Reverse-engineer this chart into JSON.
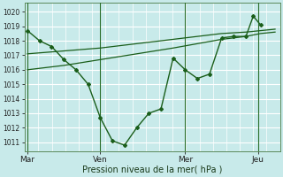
{
  "title": "",
  "xlabel": "Pression niveau de la mer( hPa )",
  "ylabel": "",
  "bg_color": "#c8eaea",
  "grid_color": "#b0d8d8",
  "line_color": "#1a5e1a",
  "vline_color": "#2a6e2a",
  "ylim": [
    1010.4,
    1020.6
  ],
  "yticks": [
    1011,
    1012,
    1013,
    1014,
    1015,
    1016,
    1017,
    1018,
    1019,
    1020
  ],
  "day_labels": [
    "Mar",
    "Ven",
    "Mer",
    "Jeu"
  ],
  "day_positions": [
    0,
    3.0,
    6.5,
    9.5
  ],
  "xlim": [
    -0.1,
    10.4
  ],
  "line1_x": [
    0,
    0.5,
    1.0,
    1.5,
    2.0,
    2.5,
    3.0,
    3.5,
    4.0,
    4.5,
    5.0,
    5.5,
    6.0,
    6.5,
    7.0,
    7.5,
    8.0,
    8.5,
    9.0,
    9.3,
    9.6
  ],
  "line1_y": [
    1018.7,
    1018.0,
    1017.6,
    1016.7,
    1016.0,
    1015.0,
    1012.7,
    1011.1,
    1010.8,
    1012.0,
    1013.0,
    1013.3,
    1016.8,
    1016.0,
    1015.4,
    1015.7,
    1018.2,
    1018.3,
    1018.3,
    1019.7,
    1019.1
  ],
  "line2_x": [
    0,
    1.5,
    3.0,
    4.5,
    6.0,
    7.0,
    8.0,
    9.0,
    9.6,
    10.2
  ],
  "line2_y": [
    1017.1,
    1017.3,
    1017.5,
    1017.8,
    1018.1,
    1018.3,
    1018.5,
    1018.6,
    1018.7,
    1018.8
  ],
  "line3_x": [
    0,
    1.5,
    3.0,
    4.5,
    6.0,
    7.0,
    8.0,
    9.0,
    9.6,
    10.2
  ],
  "line3_y": [
    1016.0,
    1016.3,
    1016.7,
    1017.1,
    1017.5,
    1017.8,
    1018.1,
    1018.3,
    1018.5,
    1018.6
  ]
}
